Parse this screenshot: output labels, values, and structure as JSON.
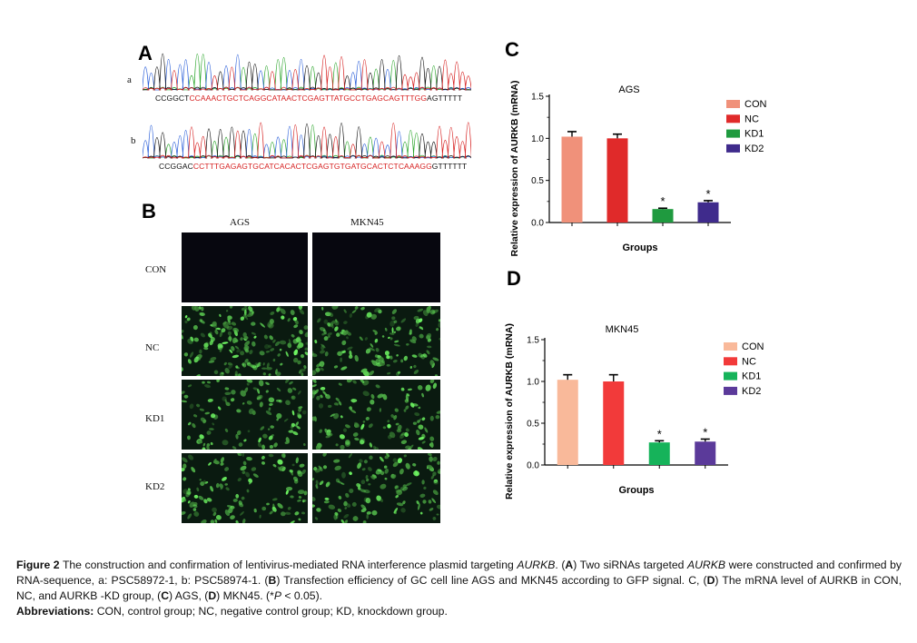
{
  "panel_A": {
    "letter": "A",
    "trace_a_label": "a",
    "trace_b_label": "b",
    "seq_a": {
      "prefix": "CCGGCT",
      "target": "CCAAACTGCTCAGGCATAACTCGAGTTATGCCTGAGCAGTTTGG",
      "suffix": "AGTTTTT"
    },
    "seq_b": {
      "prefix": "CCGGAC",
      "target": "CCTTTGAGAGTGCATCACACTCGAGTGTGATGCACTCTCAAAGG",
      "suffix": "GTTTTTT"
    },
    "colors": {
      "A": "#2aa52a",
      "C": "#2b5fd9",
      "G": "#111111",
      "T": "#d62020"
    }
  },
  "panel_B": {
    "letter": "B",
    "columns": [
      "AGS",
      "MKN45"
    ],
    "rows": [
      "CON",
      "NC",
      "KD1",
      "KD2"
    ]
  },
  "chart_data": [
    {
      "type": "bar",
      "panel": "C",
      "title": "AGS",
      "xlabel": "Groups",
      "ylabel": "Relative expression of AURKB (mRNA)",
      "ylim": [
        0,
        1.5
      ],
      "yticks": [
        0.0,
        0.5,
        1.0,
        1.5
      ],
      "ytick_labels": [
        "0.0",
        "0.5",
        "1.0",
        "1.5"
      ],
      "categories": [
        "CON",
        "NC",
        "KD1",
        "KD2"
      ],
      "values": [
        1.02,
        1.0,
        0.16,
        0.24
      ],
      "errors": [
        0.06,
        0.05,
        0.01,
        0.02
      ],
      "significant": [
        false,
        false,
        true,
        true
      ],
      "sig_marker": "*",
      "colors": [
        "#f0917a",
        "#e02a2a",
        "#1f9a3f",
        "#3f2b8c"
      ],
      "legend": [
        "CON",
        "NC",
        "KD1",
        "KD2"
      ],
      "legend_position": "top-right",
      "grid": false
    },
    {
      "type": "bar",
      "panel": "D",
      "title": "MKN45",
      "xlabel": "Groups",
      "ylabel": "Relative expression of AURKB (mRNA)",
      "ylim": [
        0,
        1.5
      ],
      "yticks": [
        0.0,
        0.5,
        1.0,
        1.5
      ],
      "ytick_labels": [
        "0.0",
        "0.5",
        "1.0",
        "1.5"
      ],
      "categories": [
        "CON",
        "NC",
        "KD1",
        "KD2"
      ],
      "values": [
        1.02,
        1.0,
        0.27,
        0.28
      ],
      "errors": [
        0.06,
        0.08,
        0.02,
        0.03
      ],
      "significant": [
        false,
        false,
        true,
        true
      ],
      "sig_marker": "*",
      "colors": [
        "#f9b99a",
        "#f23a3a",
        "#16b35a",
        "#5b3a9a"
      ],
      "legend": [
        "CON",
        "NC",
        "KD1",
        "KD2"
      ],
      "legend_position": "top-right",
      "grid": false
    }
  ],
  "caption": {
    "fig_label": "Figure 2",
    "t1": " The construction and confirmation of lentivirus-mediated RNA interference plasmid targeting ",
    "gene1": "AURKB",
    "t2": ". (",
    "A": "A",
    "t3": ") Two siRNAs targeted ",
    "gene2": "AURKB",
    "t4": " were constructed and confirmed by RNA-sequence, a: PSC58972-1, b: PSC58974-1. (",
    "B": "B",
    "t5": ") Transfection efficiency of GC cell line AGS and MKN45 according to GFP signal. C, (",
    "D1": "D",
    "t6": ") The mRNA level of AURKB in CON, NC, and AURKB -KD group, (",
    "C": "C",
    "t7": ") AGS, (",
    "D2": "D",
    "t8": ") MKN45. (*",
    "P": "P",
    "t9": " < 0.05).",
    "abbr_label": "Abbreviations:",
    "abbr_text": " CON, control group; NC, negative control group; KD, knockdown group."
  }
}
